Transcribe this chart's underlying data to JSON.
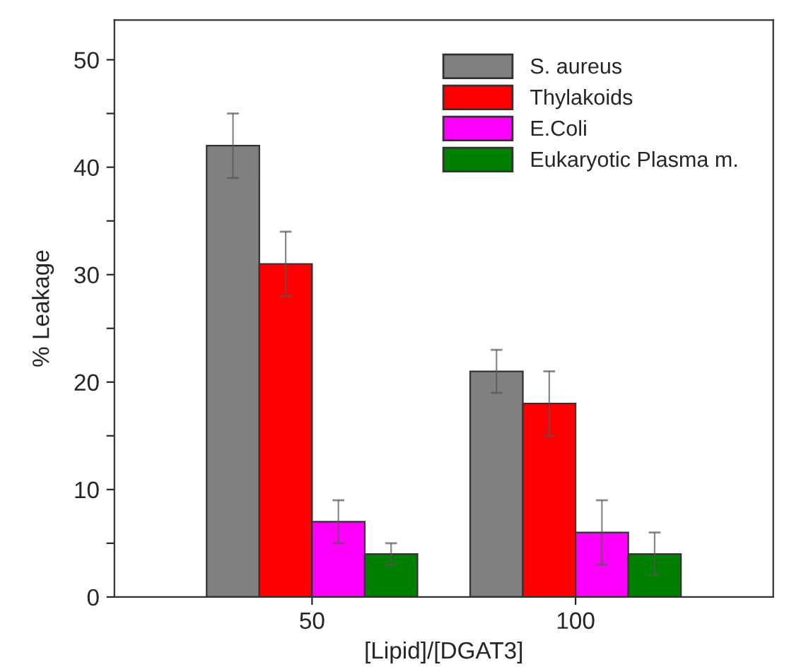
{
  "chart_data": {
    "type": "bar",
    "xlabel": "[Lipid]/[DGAT3]",
    "ylabel": "% Leakage",
    "categories": [
      "50",
      "100"
    ],
    "series": [
      {
        "name": "S. aureus",
        "color": "#808080",
        "values": [
          42,
          21
        ],
        "errors": [
          3,
          2
        ]
      },
      {
        "name": "Thylakoids",
        "color": "#ff0000",
        "values": [
          31,
          18
        ],
        "errors": [
          3,
          3
        ]
      },
      {
        "name": "E.Coli",
        "color": "#ff00ff",
        "values": [
          7,
          6
        ],
        "errors": [
          2,
          3
        ]
      },
      {
        "name": "Eukaryotic Plasma m.",
        "color": "#008000",
        "values": [
          4,
          4
        ],
        "errors": [
          1,
          2
        ]
      }
    ],
    "ylim": [
      0,
      53.7
    ],
    "yticks": [
      0,
      {
        "value": 5,
        "label": null
      },
      10,
      {
        "value": 15,
        "label": null
      },
      20,
      {
        "value": 25,
        "label": null
      },
      30,
      {
        "value": 35,
        "label": null
      },
      40,
      {
        "value": 45,
        "label": null
      },
      50
    ],
    "grid": false,
    "legend": "top right"
  }
}
